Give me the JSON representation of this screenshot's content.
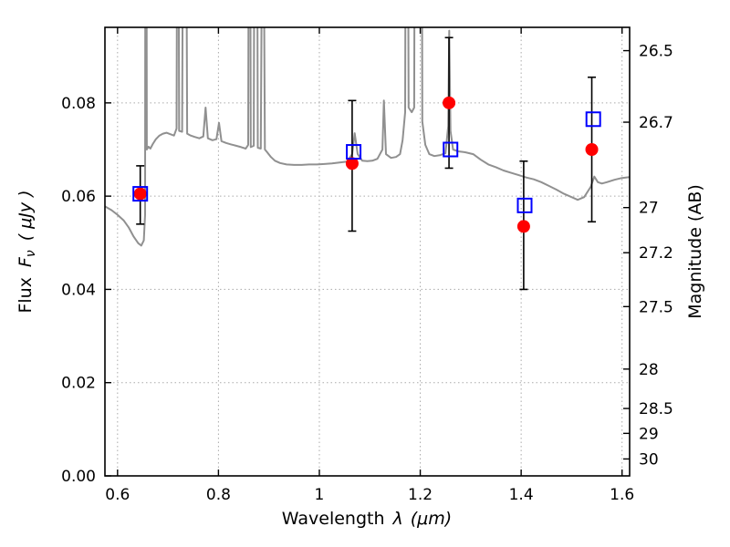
{
  "figure": {
    "background": "#ffffff"
  },
  "chart_data": {
    "type": "line",
    "title": "",
    "xlabel": {
      "word": "Wavelength",
      "symbol": "λ",
      "units": "(μm)"
    },
    "ylabel_left": {
      "word": "Flux",
      "symbol": "F",
      "symbol_sub": "ν",
      "units": "( μJy )"
    },
    "ylabel_right": "Magnitude (AB)",
    "xlim": [
      0.575,
      1.615
    ],
    "ylim": [
      0.0,
      0.0962
    ],
    "grid": {
      "on": true,
      "style": "dotted",
      "color": "#aaaaaa"
    },
    "ab_zeropoint": 23.9,
    "x_ticks": {
      "values": [
        0.6,
        0.8,
        1.0,
        1.2,
        1.4,
        1.6
      ],
      "labels": [
        "0.6",
        "0.8",
        "1",
        "1.2",
        "1.4",
        "1.6"
      ]
    },
    "y_ticks_left": {
      "values": [
        0.0,
        0.02,
        0.04,
        0.06,
        0.08
      ],
      "labels": [
        "0.00",
        "0.02",
        "0.04",
        "0.06",
        "0.08"
      ]
    },
    "y_ticks_right": {
      "values": [
        26.5,
        26.7,
        27.0,
        27.2,
        27.5,
        28.0,
        28.5,
        29.0,
        30.0
      ],
      "labels": [
        "26.5",
        "26.7",
        "27",
        "27.2",
        "27.5",
        "28",
        "28.5",
        "29",
        "30"
      ]
    },
    "spectrum": {
      "name": "model-spectrum",
      "color": "#909090",
      "width": 2,
      "points": [
        [
          0.575,
          0.0578
        ],
        [
          0.588,
          0.057
        ],
        [
          0.6,
          0.056
        ],
        [
          0.612,
          0.0548
        ],
        [
          0.622,
          0.0533
        ],
        [
          0.632,
          0.0513
        ],
        [
          0.641,
          0.0499
        ],
        [
          0.647,
          0.0494
        ],
        [
          0.652,
          0.0505
        ],
        [
          0.6545,
          0.056
        ],
        [
          0.656,
          0.25
        ],
        [
          0.658,
          0.07
        ],
        [
          0.6615,
          0.0706
        ],
        [
          0.665,
          0.0702
        ],
        [
          0.67,
          0.0712
        ],
        [
          0.676,
          0.0722
        ],
        [
          0.683,
          0.073
        ],
        [
          0.69,
          0.0734
        ],
        [
          0.697,
          0.0736
        ],
        [
          0.704,
          0.0733
        ],
        [
          0.712,
          0.073
        ],
        [
          0.717,
          0.0745
        ],
        [
          0.7195,
          0.18
        ],
        [
          0.722,
          0.074
        ],
        [
          0.728,
          0.0738
        ],
        [
          0.733,
          0.22
        ],
        [
          0.738,
          0.0734
        ],
        [
          0.745,
          0.073
        ],
        [
          0.753,
          0.0727
        ],
        [
          0.762,
          0.0724
        ],
        [
          0.77,
          0.0728
        ],
        [
          0.7745,
          0.079
        ],
        [
          0.779,
          0.0724
        ],
        [
          0.788,
          0.072
        ],
        [
          0.796,
          0.0722
        ],
        [
          0.801,
          0.0757
        ],
        [
          0.806,
          0.0718
        ],
        [
          0.815,
          0.0714
        ],
        [
          0.825,
          0.0711
        ],
        [
          0.835,
          0.0708
        ],
        [
          0.845,
          0.0705
        ],
        [
          0.854,
          0.0702
        ],
        [
          0.859,
          0.071
        ],
        [
          0.8615,
          0.2
        ],
        [
          0.864,
          0.0705
        ],
        [
          0.87,
          0.0708
        ],
        [
          0.874,
          0.25
        ],
        [
          0.878,
          0.0704
        ],
        [
          0.884,
          0.0702
        ],
        [
          0.888,
          0.15
        ],
        [
          0.892,
          0.07
        ],
        [
          0.896,
          0.0695
        ],
        [
          0.904,
          0.0684
        ],
        [
          0.912,
          0.0676
        ],
        [
          0.922,
          0.0671
        ],
        [
          0.935,
          0.0668
        ],
        [
          0.95,
          0.0667
        ],
        [
          0.965,
          0.0667
        ],
        [
          0.98,
          0.0668
        ],
        [
          0.995,
          0.0668
        ],
        [
          1.01,
          0.0669
        ],
        [
          1.025,
          0.067
        ],
        [
          1.04,
          0.0672
        ],
        [
          1.055,
          0.0674
        ],
        [
          1.065,
          0.069
        ],
        [
          1.07,
          0.0735
        ],
        [
          1.076,
          0.069
        ],
        [
          1.085,
          0.0676
        ],
        [
          1.095,
          0.0675
        ],
        [
          1.105,
          0.0676
        ],
        [
          1.115,
          0.068
        ],
        [
          1.125,
          0.07
        ],
        [
          1.128,
          0.0805
        ],
        [
          1.132,
          0.069
        ],
        [
          1.142,
          0.0682
        ],
        [
          1.152,
          0.0684
        ],
        [
          1.16,
          0.069
        ],
        [
          1.165,
          0.072
        ],
        [
          1.17,
          0.078
        ],
        [
          1.173,
          0.22
        ],
        [
          1.177,
          0.079
        ],
        [
          1.183,
          0.078
        ],
        [
          1.188,
          0.079
        ],
        [
          1.193,
          0.3
        ],
        [
          1.2,
          0.3
        ],
        [
          1.204,
          0.076
        ],
        [
          1.21,
          0.071
        ],
        [
          1.218,
          0.069
        ],
        [
          1.228,
          0.0686
        ],
        [
          1.24,
          0.0688
        ],
        [
          1.25,
          0.0692
        ],
        [
          1.2555,
          0.075
        ],
        [
          1.2575,
          0.0955
        ],
        [
          1.26,
          0.074
        ],
        [
          1.265,
          0.07
        ],
        [
          1.275,
          0.0696
        ],
        [
          1.29,
          0.0694
        ],
        [
          1.305,
          0.069
        ],
        [
          1.32,
          0.0678
        ],
        [
          1.335,
          0.0668
        ],
        [
          1.35,
          0.0662
        ],
        [
          1.365,
          0.0655
        ],
        [
          1.38,
          0.065
        ],
        [
          1.395,
          0.0645
        ],
        [
          1.41,
          0.064
        ],
        [
          1.425,
          0.0636
        ],
        [
          1.44,
          0.063
        ],
        [
          1.455,
          0.0622
        ],
        [
          1.47,
          0.0614
        ],
        [
          1.485,
          0.0605
        ],
        [
          1.5,
          0.0598
        ],
        [
          1.512,
          0.0592
        ],
        [
          1.525,
          0.0598
        ],
        [
          1.538,
          0.062
        ],
        [
          1.545,
          0.0642
        ],
        [
          1.552,
          0.063
        ],
        [
          1.56,
          0.0627
        ],
        [
          1.57,
          0.063
        ],
        [
          1.585,
          0.0635
        ],
        [
          1.6,
          0.0639
        ],
        [
          1.615,
          0.0641
        ]
      ]
    },
    "observed_photometry": {
      "name": "observed-photometry",
      "marker": "circle",
      "color": "#ff0000",
      "errorbar_color": "#000000",
      "size": 7,
      "points": [
        {
          "x": 0.645,
          "y": 0.0605,
          "err_lo": 0.0065,
          "err_hi": 0.006
        },
        {
          "x": 1.065,
          "y": 0.067,
          "err_lo": 0.0145,
          "err_hi": 0.0135
        },
        {
          "x": 1.257,
          "y": 0.08,
          "err_lo": 0.014,
          "err_hi": 0.014
        },
        {
          "x": 1.405,
          "y": 0.0535,
          "err_lo": 0.0135,
          "err_hi": 0.014
        },
        {
          "x": 1.54,
          "y": 0.07,
          "err_lo": 0.0155,
          "err_hi": 0.0155
        }
      ]
    },
    "model_photometry": {
      "name": "model-photometry",
      "marker": "square",
      "color": "#0000ff",
      "size": 15,
      "points": [
        {
          "x": 0.645,
          "y": 0.0605
        },
        {
          "x": 1.068,
          "y": 0.0695
        },
        {
          "x": 1.26,
          "y": 0.07
        },
        {
          "x": 1.407,
          "y": 0.058
        },
        {
          "x": 1.543,
          "y": 0.0765
        }
      ]
    }
  }
}
